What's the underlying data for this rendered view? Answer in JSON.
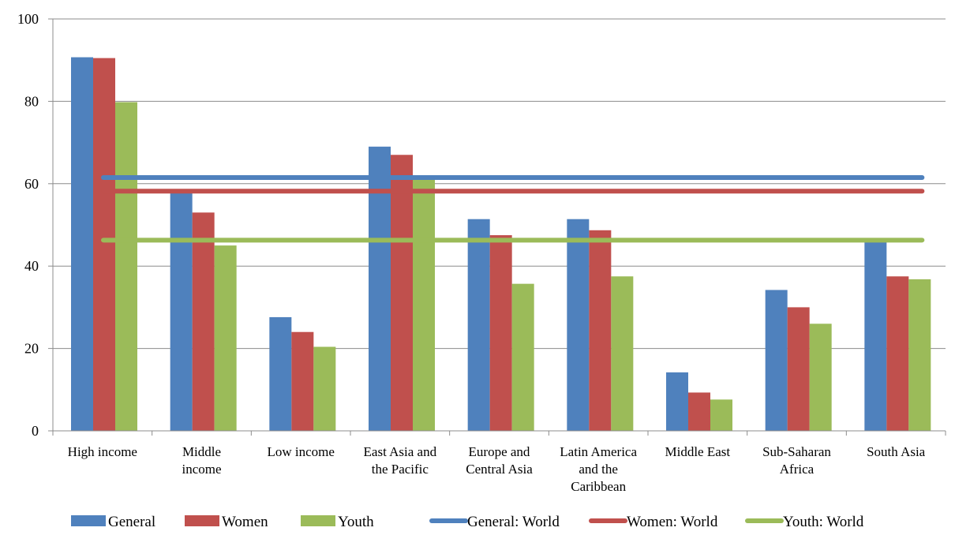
{
  "chart_data": {
    "type": "bar",
    "title": "",
    "xlabel": "",
    "ylabel": "",
    "ylim": [
      0,
      100
    ],
    "yticks": [
      0,
      20,
      40,
      60,
      80,
      100
    ],
    "grid": true,
    "legend_position": "bottom",
    "categories": [
      [
        "High income"
      ],
      [
        "Middle",
        "income"
      ],
      [
        "Low income"
      ],
      [
        "East Asia and",
        "the Pacific"
      ],
      [
        "Europe and",
        "Central Asia"
      ],
      [
        "Latin America",
        "and the",
        "Caribbean"
      ],
      [
        "Middle East"
      ],
      [
        "Sub-Saharan",
        "Africa"
      ],
      [
        "South Asia"
      ]
    ],
    "series": [
      {
        "name": "General",
        "color": "#4F81BD",
        "values": [
          90.7,
          58.2,
          27.6,
          69.0,
          51.4,
          51.4,
          14.2,
          34.2,
          46.0
        ]
      },
      {
        "name": "Women",
        "color": "#C0504D",
        "values": [
          90.5,
          53.0,
          24.0,
          67.0,
          47.5,
          48.7,
          9.3,
          30.0,
          37.5
        ]
      },
      {
        "name": "Youth",
        "color": "#9BBB59",
        "values": [
          79.8,
          45.0,
          20.4,
          61.0,
          35.7,
          37.5,
          7.6,
          26.0,
          36.8
        ]
      }
    ],
    "reference_lines": [
      {
        "name": "General: World",
        "color": "#4F81BD",
        "value": 61.5
      },
      {
        "name": "Women: World",
        "color": "#C0504D",
        "value": 58.2
      },
      {
        "name": "Youth: World",
        "color": "#9BBB59",
        "value": 46.3
      }
    ]
  }
}
